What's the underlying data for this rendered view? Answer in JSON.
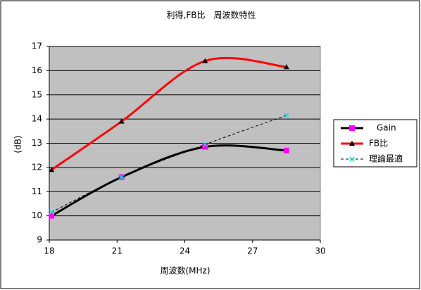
{
  "chart_data": {
    "type": "line",
    "title": "利得,FB比　周波数特性",
    "x_label": "周波数(MHz)",
    "y_label": "(dB)",
    "x": [
      18.1,
      21.2,
      24.9,
      28.5
    ],
    "series": [
      {
        "name": "Gain",
        "color": "#000000",
        "marker": "square",
        "marker_color": "#ff00ff",
        "line_style": "solid",
        "values": [
          10.0,
          11.6,
          12.85,
          12.7
        ]
      },
      {
        "name": "FB比",
        "color": "#ff0000",
        "marker": "triangle",
        "marker_color": "#000000",
        "line_style": "solid",
        "values": [
          11.9,
          13.9,
          16.4,
          16.15
        ]
      },
      {
        "name": "理論最適",
        "color": "#000000",
        "marker": "x",
        "marker_color": "#00e0e0",
        "line_style": "dashed",
        "values": [
          10.15,
          11.6,
          12.95,
          14.15
        ]
      }
    ],
    "xlim": [
      18,
      30
    ],
    "xticks": [
      18,
      21,
      24,
      27,
      30
    ],
    "ylim": [
      9,
      17
    ],
    "yticks": [
      9,
      10,
      11,
      12,
      13,
      14,
      15,
      16,
      17
    ],
    "grid": true,
    "plot_background": "#c0c0c0",
    "smooth": true,
    "legend": "right"
  }
}
